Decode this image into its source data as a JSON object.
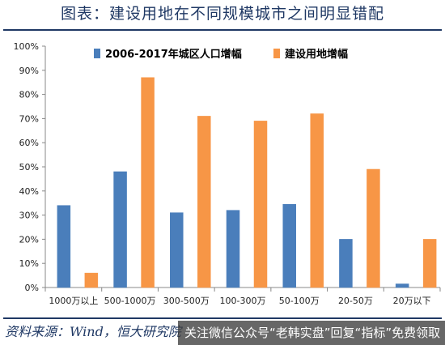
{
  "header": {
    "title": "图表：建设用地在不同规模城市之间明显错配"
  },
  "footer": {
    "source": "资料来源：Wind，恒大研究院"
  },
  "watermark": {
    "text": "关注微信公众号“老韩实盘”回复“指标”免费领取"
  },
  "chart_data": {
    "type": "bar",
    "categories": [
      "1000万以上",
      "500-1000万",
      "300-500万",
      "100-300万",
      "50-100万",
      "20-50万",
      "20万以下"
    ],
    "series": [
      {
        "name": "2006-2017年城区人口增幅",
        "values": [
          34,
          48,
          31,
          32,
          34.5,
          20,
          1.5
        ],
        "color": "#4a7ebb"
      },
      {
        "name": "建设用地增幅",
        "values": [
          6,
          87,
          71,
          69,
          72,
          49,
          20
        ],
        "color": "#f79646"
      }
    ],
    "yticks": [
      "0%",
      "10%",
      "20%",
      "30%",
      "40%",
      "50%",
      "60%",
      "70%",
      "80%",
      "90%",
      "100%"
    ],
    "ylim": [
      0,
      100
    ],
    "legend": "top",
    "grid": false
  }
}
